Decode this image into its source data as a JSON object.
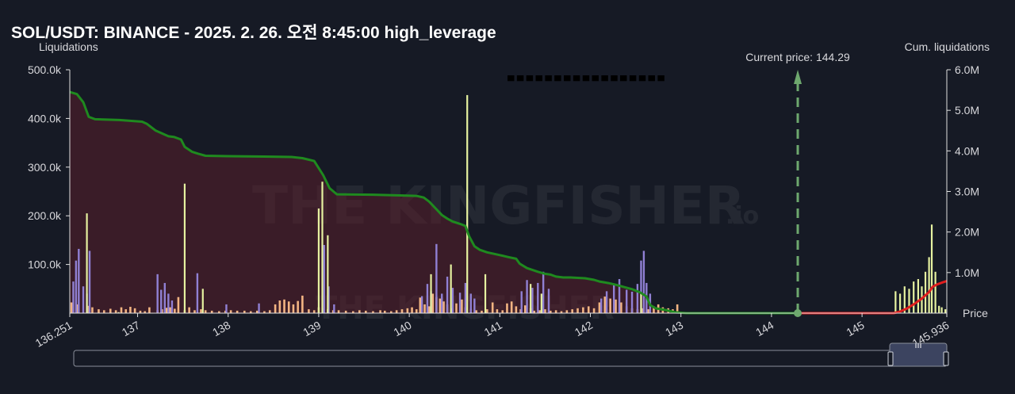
{
  "title": "SOL/USDT: BINANCE - 2025. 2. 26. 오전 8:45:00 high_leverage",
  "watermark": {
    "brand": "THE KINGFISHER",
    "suffix": ".io"
  },
  "legend_hint": "▀ ▀ ▀ ▀ ▀ ▀ ▀ ▀ ▀ ▀ ▀ ▀ ▀ ▀ ▀ ▀ ▀",
  "colors": {
    "background": "#161a25",
    "short_liq": "#f2b482",
    "long_liq": "#9080d4",
    "high_lev": "#e6f2a0",
    "cum_below": "#1f8a1f",
    "cum_above": "#e01e1e",
    "fill_below": "#5a1f2b",
    "current_price": "#6ea86e",
    "slider": "#3c4460"
  },
  "chart_data": {
    "type": "bar",
    "xlabel": "Price",
    "ylabel_left": "Liquidations",
    "ylabel_right": "Cum. liquidations",
    "xlim": [
      136.251,
      145.936
    ],
    "ylim_left": [
      0,
      500000
    ],
    "ylim_right": [
      0,
      6000000
    ],
    "x_ticks": [
      "136.251",
      "137",
      "138",
      "139",
      "140",
      "141",
      "142",
      "143",
      "144",
      "145",
      "145.936"
    ],
    "y_left_ticks": [
      "100.0k",
      "200.0k",
      "300.0k",
      "400.0k",
      "500.0k"
    ],
    "y_right_ticks": [
      "1.0M",
      "2.0M",
      "3.0M",
      "4.0M",
      "5.0M",
      "6.0M"
    ],
    "current_price": 144.29,
    "current_price_label": "Current price: 144.29",
    "series": [
      {
        "kind": "short",
        "bars": [
          [
            136.27,
            22000
          ],
          [
            136.33,
            18000
          ],
          [
            136.45,
            15000
          ],
          [
            136.5,
            12000
          ],
          [
            136.57,
            8000
          ],
          [
            136.63,
            6000
          ],
          [
            136.7,
            9000
          ],
          [
            136.76,
            6000
          ],
          [
            136.82,
            12000
          ],
          [
            136.87,
            8000
          ],
          [
            136.92,
            13000
          ],
          [
            136.97,
            10000
          ],
          [
            137.03,
            5000
          ],
          [
            137.08,
            4000
          ],
          [
            137.13,
            12000
          ],
          [
            137.22,
            6000
          ],
          [
            137.27,
            8000
          ],
          [
            137.32,
            11000
          ],
          [
            137.36,
            12000
          ],
          [
            137.41,
            9000
          ],
          [
            137.45,
            33000
          ],
          [
            137.52,
            6000
          ],
          [
            137.57,
            12000
          ],
          [
            137.63,
            6000
          ],
          [
            137.7,
            8000
          ],
          [
            137.75,
            6000
          ],
          [
            137.82,
            5000
          ],
          [
            137.9,
            4000
          ],
          [
            137.97,
            5000
          ],
          [
            138.03,
            6000
          ],
          [
            138.1,
            5000
          ],
          [
            138.18,
            5000
          ],
          [
            138.25,
            4000
          ],
          [
            138.32,
            5000
          ],
          [
            138.4,
            4000
          ],
          [
            138.46,
            6000
          ],
          [
            138.52,
            18000
          ],
          [
            138.57,
            26000
          ],
          [
            138.62,
            28000
          ],
          [
            138.67,
            24000
          ],
          [
            138.72,
            18000
          ],
          [
            138.77,
            25000
          ],
          [
            138.82,
            36000
          ],
          [
            138.89,
            8000
          ],
          [
            138.95,
            6000
          ],
          [
            139.0,
            12000
          ],
          [
            139.05,
            10000
          ],
          [
            139.1,
            8000
          ],
          [
            139.16,
            6000
          ],
          [
            139.22,
            6000
          ],
          [
            139.3,
            5000
          ],
          [
            139.38,
            4000
          ],
          [
            139.45,
            6000
          ],
          [
            139.52,
            5000
          ],
          [
            139.6,
            4000
          ],
          [
            139.68,
            6000
          ],
          [
            139.73,
            5000
          ],
          [
            139.8,
            4000
          ],
          [
            139.86,
            6000
          ],
          [
            139.92,
            8000
          ],
          [
            139.98,
            10000
          ],
          [
            140.03,
            12000
          ],
          [
            140.08,
            8000
          ],
          [
            140.12,
            32000
          ],
          [
            140.17,
            18000
          ],
          [
            140.22,
            14000
          ],
          [
            140.26,
            40000
          ],
          [
            140.3,
            33000
          ],
          [
            140.34,
            30000
          ],
          [
            140.38,
            24000
          ],
          [
            140.42,
            18000
          ],
          [
            140.47,
            10000
          ],
          [
            140.52,
            20000
          ],
          [
            140.58,
            28000
          ],
          [
            140.62,
            12000
          ],
          [
            140.68,
            9000
          ],
          [
            140.74,
            6000
          ],
          [
            140.8,
            5000
          ],
          [
            140.86,
            8000
          ],
          [
            140.92,
            22000
          ],
          [
            140.97,
            8000
          ],
          [
            141.03,
            6000
          ],
          [
            141.08,
            20000
          ],
          [
            141.13,
            24000
          ],
          [
            141.18,
            14000
          ],
          [
            141.23,
            8000
          ],
          [
            141.28,
            16000
          ],
          [
            141.34,
            10000
          ],
          [
            141.38,
            5000
          ],
          [
            141.44,
            6000
          ],
          [
            141.5,
            8000
          ],
          [
            141.56,
            5000
          ],
          [
            141.62,
            6000
          ],
          [
            141.68,
            4000
          ],
          [
            141.74,
            6000
          ],
          [
            141.8,
            8000
          ],
          [
            141.86,
            10000
          ],
          [
            141.92,
            12000
          ],
          [
            141.98,
            14000
          ],
          [
            142.04,
            10000
          ],
          [
            142.1,
            22000
          ],
          [
            142.16,
            34000
          ],
          [
            142.22,
            30000
          ],
          [
            142.28,
            28000
          ],
          [
            142.34,
            22000
          ],
          [
            142.4,
            14000
          ],
          [
            142.46,
            10000
          ],
          [
            142.52,
            8000
          ],
          [
            142.58,
            10000
          ],
          [
            142.64,
            8000
          ],
          [
            142.7,
            14000
          ],
          [
            142.75,
            18000
          ],
          [
            142.8,
            12000
          ],
          [
            142.86,
            10000
          ],
          [
            142.91,
            8000
          ],
          [
            142.96,
            18000
          ]
        ]
      },
      {
        "kind": "long",
        "bars": [
          [
            136.29,
            65000
          ],
          [
            136.32,
            108000
          ],
          [
            136.35,
            132000
          ],
          [
            136.4,
            55000
          ],
          [
            136.44,
            40000
          ],
          [
            136.47,
            128000
          ],
          [
            137.22,
            80000
          ],
          [
            137.26,
            48000
          ],
          [
            137.3,
            62000
          ],
          [
            137.34,
            40000
          ],
          [
            137.38,
            26000
          ],
          [
            137.66,
            82000
          ],
          [
            137.98,
            18000
          ],
          [
            138.34,
            20000
          ],
          [
            139.06,
            140000
          ],
          [
            139.11,
            55000
          ],
          [
            139.17,
            18000
          ],
          [
            140.14,
            35000
          ],
          [
            140.2,
            60000
          ],
          [
            140.24,
            45000
          ],
          [
            140.3,
            142000
          ],
          [
            140.36,
            40000
          ],
          [
            140.42,
            75000
          ],
          [
            140.48,
            52000
          ],
          [
            140.56,
            42000
          ],
          [
            140.62,
            62000
          ],
          [
            140.68,
            40000
          ],
          [
            140.72,
            30000
          ],
          [
            141.24,
            45000
          ],
          [
            141.3,
            68000
          ],
          [
            141.36,
            52000
          ],
          [
            141.42,
            62000
          ],
          [
            141.48,
            85000
          ],
          [
            141.54,
            50000
          ],
          [
            142.12,
            30000
          ],
          [
            142.18,
            45000
          ],
          [
            142.26,
            58000
          ],
          [
            142.32,
            70000
          ],
          [
            142.4,
            48000
          ],
          [
            142.46,
            44000
          ],
          [
            142.52,
            60000
          ],
          [
            142.56,
            108000
          ],
          [
            142.59,
            128000
          ],
          [
            142.62,
            62000
          ],
          [
            142.66,
            40000
          ]
        ]
      },
      {
        "kind": "high",
        "bars": [
          [
            136.44,
            205000
          ],
          [
            136.79,
            2000
          ],
          [
            137.52,
            266000
          ],
          [
            137.72,
            50000
          ],
          [
            139.0,
            215000
          ],
          [
            139.04,
            270000
          ],
          [
            139.1,
            160000
          ],
          [
            140.24,
            80000
          ],
          [
            140.46,
            100000
          ],
          [
            140.64,
            448000
          ],
          [
            140.84,
            80000
          ],
          [
            141.34,
            60000
          ],
          [
            141.46,
            40000
          ],
          [
            142.56,
            40000
          ],
          [
            145.37,
            45000
          ],
          [
            145.42,
            40000
          ],
          [
            145.47,
            55000
          ],
          [
            145.52,
            50000
          ],
          [
            145.57,
            65000
          ],
          [
            145.62,
            70000
          ],
          [
            145.66,
            55000
          ],
          [
            145.7,
            85000
          ],
          [
            145.74,
            115000
          ],
          [
            145.77,
            182000
          ],
          [
            145.81,
            85000
          ],
          [
            145.85,
            15000
          ],
          [
            145.88,
            12000
          ],
          [
            145.92,
            8000
          ]
        ]
      },
      {
        "kind": "cum_below",
        "points": [
          [
            136.251,
            5450000
          ],
          [
            136.33,
            5400000
          ],
          [
            136.4,
            5200000
          ],
          [
            136.46,
            4840000
          ],
          [
            136.53,
            4780000
          ],
          [
            136.8,
            4760000
          ],
          [
            137.05,
            4720000
          ],
          [
            137.1,
            4670000
          ],
          [
            137.2,
            4500000
          ],
          [
            137.34,
            4360000
          ],
          [
            137.4,
            4345000
          ],
          [
            137.48,
            4280000
          ],
          [
            137.52,
            4100000
          ],
          [
            137.6,
            3980000
          ],
          [
            137.67,
            3930000
          ],
          [
            137.75,
            3880000
          ],
          [
            138.0,
            3870000
          ],
          [
            138.4,
            3860000
          ],
          [
            138.7,
            3850000
          ],
          [
            138.82,
            3820000
          ],
          [
            138.95,
            3750000
          ],
          [
            139.05,
            3400000
          ],
          [
            139.12,
            3080000
          ],
          [
            139.2,
            2930000
          ],
          [
            139.6,
            2920000
          ],
          [
            140.08,
            2890000
          ],
          [
            140.16,
            2850000
          ],
          [
            140.22,
            2750000
          ],
          [
            140.3,
            2560000
          ],
          [
            140.36,
            2420000
          ],
          [
            140.42,
            2330000
          ],
          [
            140.48,
            2260000
          ],
          [
            140.56,
            2200000
          ],
          [
            140.62,
            2150000
          ],
          [
            140.66,
            1900000
          ],
          [
            140.72,
            1650000
          ],
          [
            140.78,
            1560000
          ],
          [
            140.86,
            1500000
          ],
          [
            140.94,
            1460000
          ],
          [
            141.02,
            1420000
          ],
          [
            141.1,
            1380000
          ],
          [
            141.18,
            1340000
          ],
          [
            141.22,
            1220000
          ],
          [
            141.3,
            1110000
          ],
          [
            141.42,
            1020000
          ],
          [
            141.5,
            970000
          ],
          [
            141.56,
            950000
          ],
          [
            141.62,
            900000
          ],
          [
            141.7,
            880000
          ],
          [
            141.78,
            880000
          ],
          [
            141.86,
            870000
          ],
          [
            141.94,
            860000
          ],
          [
            142.04,
            820000
          ],
          [
            142.1,
            780000
          ],
          [
            142.2,
            740000
          ],
          [
            142.28,
            700000
          ],
          [
            142.36,
            650000
          ],
          [
            142.46,
            590000
          ],
          [
            142.55,
            510000
          ],
          [
            142.62,
            410000
          ],
          [
            142.66,
            200000
          ],
          [
            142.72,
            120000
          ],
          [
            142.82,
            80000
          ],
          [
            142.94,
            20000
          ],
          [
            143.06,
            0
          ],
          [
            144.29,
            0
          ]
        ]
      },
      {
        "kind": "cum_above",
        "points": [
          [
            144.29,
            0
          ],
          [
            145.35,
            0
          ],
          [
            145.42,
            40000
          ],
          [
            145.5,
            120000
          ],
          [
            145.58,
            230000
          ],
          [
            145.66,
            360000
          ],
          [
            145.74,
            520000
          ],
          [
            145.78,
            650000
          ],
          [
            145.83,
            710000
          ],
          [
            145.88,
            750000
          ],
          [
            145.92,
            780000
          ],
          [
            145.936,
            790000
          ]
        ]
      }
    ]
  }
}
